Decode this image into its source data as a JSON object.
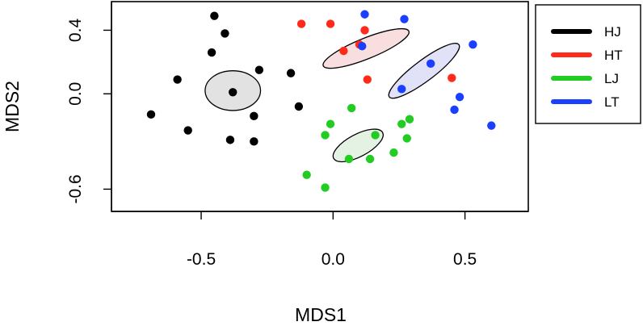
{
  "chart_data": {
    "type": "scatter",
    "title": "",
    "xlabel": "MDS1",
    "ylabel": "MDS2",
    "xlim": [
      -0.84,
      0.74
    ],
    "ylim": [
      -0.74,
      0.58
    ],
    "xticks": [
      -0.5,
      0.0,
      0.5
    ],
    "xtick_labels": [
      "-0.5",
      "0.0",
      "0.5"
    ],
    "yticks": [
      -0.6,
      0.0,
      0.4
    ],
    "ytick_labels": [
      "-0.6",
      "0.0",
      "0.4"
    ],
    "grid": false,
    "legend_position": "right",
    "series": [
      {
        "name": "HJ",
        "color": "#000000",
        "fill": "#dddddd",
        "ellipse": {
          "cx": -0.38,
          "cy": 0.02,
          "rx": 0.105,
          "ry": 0.125,
          "angle": 0
        },
        "points": [
          [
            -0.45,
            0.49
          ],
          [
            -0.41,
            0.38
          ],
          [
            -0.46,
            0.26
          ],
          [
            -0.28,
            0.15
          ],
          [
            -0.59,
            0.09
          ],
          [
            -0.38,
            0.01
          ],
          [
            -0.16,
            0.13
          ],
          [
            -0.13,
            -0.08
          ],
          [
            -0.69,
            -0.13
          ],
          [
            -0.3,
            -0.14
          ],
          [
            -0.55,
            -0.23
          ],
          [
            -0.39,
            -0.29
          ],
          [
            -0.3,
            -0.3
          ]
        ]
      },
      {
        "name": "HT",
        "color": "#ff2a1a",
        "fill": "#f7d8d8",
        "ellipse": {
          "cx": 0.125,
          "cy": 0.285,
          "rx": 0.175,
          "ry": 0.065,
          "angle": -22
        },
        "points": [
          [
            -0.12,
            0.44
          ],
          [
            -0.01,
            0.44
          ],
          [
            0.12,
            0.4
          ],
          [
            0.04,
            0.27
          ],
          [
            0.1,
            0.31
          ],
          [
            0.13,
            0.09
          ],
          [
            0.45,
            0.1
          ]
        ]
      },
      {
        "name": "LJ",
        "color": "#22cc22",
        "fill": "#dff0df",
        "ellipse": {
          "cx": 0.095,
          "cy": -0.325,
          "rx": 0.105,
          "ry": 0.07,
          "angle": -28
        },
        "points": [
          [
            0.07,
            -0.09
          ],
          [
            -0.01,
            -0.19
          ],
          [
            0.26,
            -0.19
          ],
          [
            0.29,
            -0.16
          ],
          [
            -0.03,
            -0.26
          ],
          [
            0.16,
            -0.26
          ],
          [
            0.28,
            -0.28
          ],
          [
            0.23,
            -0.37
          ],
          [
            0.06,
            -0.41
          ],
          [
            0.14,
            -0.41
          ],
          [
            -0.1,
            -0.51
          ],
          [
            -0.03,
            -0.59
          ]
        ]
      },
      {
        "name": "LT",
        "color": "#1a3fff",
        "fill": "#dcdcf7",
        "ellipse": {
          "cx": 0.345,
          "cy": 0.145,
          "rx": 0.165,
          "ry": 0.065,
          "angle": -37
        },
        "points": [
          [
            0.12,
            0.5
          ],
          [
            0.27,
            0.47
          ],
          [
            0.11,
            0.3
          ],
          [
            0.53,
            0.31
          ],
          [
            0.37,
            0.19
          ],
          [
            0.26,
            0.03
          ],
          [
            0.48,
            -0.02
          ],
          [
            0.46,
            -0.1
          ],
          [
            0.6,
            -0.2
          ]
        ]
      }
    ]
  }
}
